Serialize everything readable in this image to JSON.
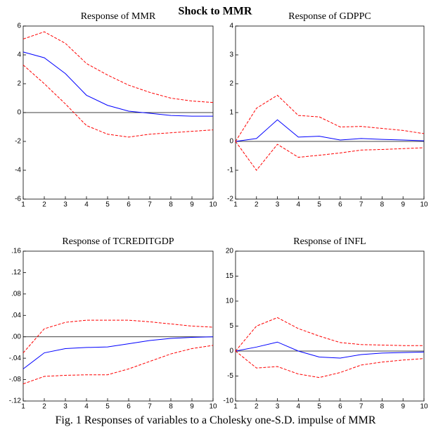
{
  "title": "Shock to MMR",
  "caption": "Fig. 1 Responses of variables to a Cholesky one-S.D. impulse of MMR",
  "chart_data": [
    {
      "type": "line",
      "title": "Response of MMR",
      "x": [
        1,
        2,
        3,
        4,
        5,
        6,
        7,
        8,
        9,
        10
      ],
      "xlim": [
        1,
        10
      ],
      "xticks": [
        1,
        2,
        3,
        4,
        5,
        6,
        7,
        8,
        9,
        10
      ],
      "ylim": [
        -6,
        6
      ],
      "yticks": [
        -6,
        -4,
        -2,
        0,
        2,
        4,
        6
      ],
      "series": [
        {
          "color": "#0000ff",
          "dashed": false,
          "values": [
            4.2,
            3.8,
            2.7,
            1.2,
            0.5,
            0.1,
            -0.05,
            -0.2,
            -0.25,
            -0.25
          ]
        },
        {
          "color": "#ff0000",
          "dashed": true,
          "values": [
            5.1,
            5.6,
            4.8,
            3.4,
            2.6,
            1.9,
            1.4,
            1.0,
            0.8,
            0.7
          ]
        },
        {
          "color": "#ff0000",
          "dashed": true,
          "values": [
            3.3,
            2.0,
            0.6,
            -0.9,
            -1.5,
            -1.7,
            -1.5,
            -1.4,
            -1.3,
            -1.2
          ]
        }
      ]
    },
    {
      "type": "line",
      "title": "Response of GDPPC",
      "x": [
        1,
        2,
        3,
        4,
        5,
        6,
        7,
        8,
        9,
        10
      ],
      "xlim": [
        1,
        10
      ],
      "xticks": [
        1,
        2,
        3,
        4,
        5,
        6,
        7,
        8,
        9,
        10
      ],
      "ylim": [
        -2,
        4
      ],
      "yticks": [
        -2,
        -1,
        0,
        1,
        2,
        3,
        4
      ],
      "series": [
        {
          "color": "#0000ff",
          "dashed": false,
          "values": [
            0,
            0.1,
            0.75,
            0.15,
            0.18,
            0.05,
            0.1,
            0.07,
            0.05,
            0.02
          ]
        },
        {
          "color": "#ff0000",
          "dashed": true,
          "values": [
            0,
            1.15,
            1.6,
            0.9,
            0.85,
            0.5,
            0.52,
            0.45,
            0.38,
            0.27
          ]
        },
        {
          "color": "#ff0000",
          "dashed": true,
          "values": [
            0,
            -1.0,
            -0.1,
            -0.55,
            -0.48,
            -0.4,
            -0.3,
            -0.28,
            -0.25,
            -0.22
          ]
        }
      ]
    },
    {
      "type": "line",
      "title": "Response of TCREDITGDP",
      "x": [
        1,
        2,
        3,
        4,
        5,
        6,
        7,
        8,
        9,
        10
      ],
      "xlim": [
        1,
        10
      ],
      "xticks": [
        1,
        2,
        3,
        4,
        5,
        6,
        7,
        8,
        9,
        10
      ],
      "ylim": [
        -0.12,
        0.16
      ],
      "yticks": [
        {
          "value": -0.12,
          "label": "-.12"
        },
        {
          "value": -0.08,
          "label": "-.08"
        },
        {
          "value": -0.04,
          "label": "-.04"
        },
        {
          "value": 0,
          "label": ".00"
        },
        {
          "value": 0.04,
          "label": ".04"
        },
        {
          "value": 0.08,
          "label": ".08"
        },
        {
          "value": 0.12,
          "label": ".12"
        },
        {
          "value": 0.16,
          "label": ".16"
        }
      ],
      "series": [
        {
          "color": "#0000ff",
          "dashed": false,
          "values": [
            -0.06,
            -0.03,
            -0.022,
            -0.02,
            -0.019,
            -0.013,
            -0.007,
            -0.003,
            -0.001,
            0.0
          ]
        },
        {
          "color": "#ff0000",
          "dashed": true,
          "values": [
            -0.03,
            0.015,
            0.027,
            0.031,
            0.031,
            0.031,
            0.028,
            0.024,
            0.02,
            0.018
          ]
        },
        {
          "color": "#ff0000",
          "dashed": true,
          "values": [
            -0.088,
            -0.074,
            -0.072,
            -0.071,
            -0.071,
            -0.06,
            -0.046,
            -0.032,
            -0.022,
            -0.016
          ]
        }
      ]
    },
    {
      "type": "line",
      "title": "Response of INFL",
      "x": [
        1,
        2,
        3,
        4,
        5,
        6,
        7,
        8,
        9,
        10
      ],
      "xlim": [
        1,
        10
      ],
      "xticks": [
        1,
        2,
        3,
        4,
        5,
        6,
        7,
        8,
        9,
        10
      ],
      "ylim": [
        -10,
        20
      ],
      "yticks": [
        -10,
        -5,
        0,
        5,
        10,
        15,
        20
      ],
      "series": [
        {
          "color": "#0000ff",
          "dashed": false,
          "values": [
            0,
            0.8,
            1.8,
            0,
            -1.2,
            -1.4,
            -0.7,
            -0.4,
            -0.3,
            -0.2
          ]
        },
        {
          "color": "#ff0000",
          "dashed": true,
          "values": [
            0,
            5,
            6.7,
            4.5,
            3,
            1.7,
            1.3,
            1.2,
            1.1,
            1.1
          ]
        },
        {
          "color": "#ff0000",
          "dashed": true,
          "values": [
            0,
            -3.4,
            -3.1,
            -4.6,
            -5.3,
            -4.3,
            -2.8,
            -2.2,
            -1.8,
            -1.5
          ]
        }
      ]
    }
  ]
}
